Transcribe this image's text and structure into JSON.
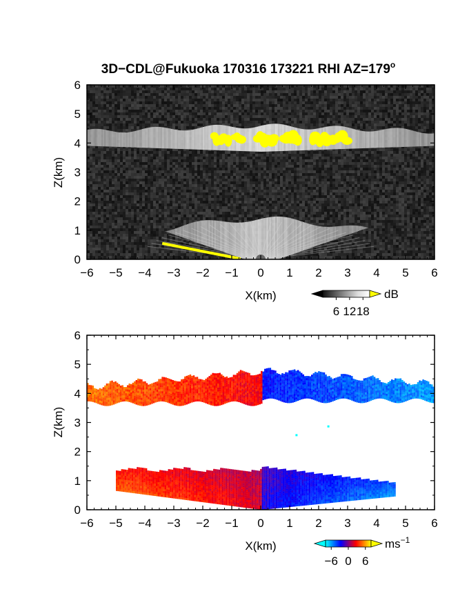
{
  "chart_data": [
    {
      "type": "heatmap",
      "title": "3D−CDL@Fukuoka 170316 173221 RHI AZ=179",
      "title_superscript": "o",
      "xlabel": "X(km)",
      "ylabel": "Z(km)",
      "xlim": [
        -6,
        6
      ],
      "ylim": [
        0,
        6
      ],
      "xticks": [
        -6,
        -5,
        -4,
        -3,
        -2,
        -1,
        0,
        1,
        2,
        3,
        4,
        5,
        6
      ],
      "yticks": [
        0,
        1,
        2,
        3,
        4,
        5,
        6
      ],
      "xtick_labels": [
        "−6",
        "−5",
        "−4",
        "−3",
        "−2",
        "−1",
        "0",
        "1",
        "2",
        "3",
        "4",
        "5",
        "6"
      ],
      "ytick_labels": [
        "0",
        "1",
        "2",
        "3",
        "4",
        "5",
        "6"
      ],
      "quantity": "SNR",
      "colorbar": {
        "unit": "dB",
        "ticks": [
          6,
          12,
          18
        ],
        "tick_labels": [
          "6",
          "12",
          "18"
        ],
        "colormap": "grayscale",
        "overflow_color": "#ffff00",
        "range": [
          0,
          21
        ]
      },
      "features": [
        {
          "name": "upper layer",
          "x_range": [
            -6,
            6
          ],
          "z_range": [
            3.7,
            4.6
          ],
          "highlight_segments_x": [
            [
              -1.6,
              -1.1
            ],
            [
              -0.9,
              -0.6
            ],
            [
              -0.1,
              0.5
            ],
            [
              0.8,
              1.3
            ],
            [
              1.8,
              2.3
            ],
            [
              2.5,
              3.0
            ]
          ],
          "highlight_z": [
            3.9,
            4.4
          ]
        },
        {
          "name": "lower layer",
          "x_range": [
            -4.8,
            4.8
          ],
          "z_range": [
            0,
            1.4
          ]
        },
        {
          "name": "ground return",
          "x_range": [
            -3.4,
            -0.6
          ],
          "z_range": [
            0,
            0.55
          ]
        }
      ]
    },
    {
      "type": "heatmap",
      "xlabel": "X(km)",
      "ylabel": "Z(km)",
      "xlim": [
        -6,
        6
      ],
      "ylim": [
        0,
        6
      ],
      "xticks": [
        -6,
        -5,
        -4,
        -3,
        -2,
        -1,
        0,
        1,
        2,
        3,
        4,
        5,
        6
      ],
      "yticks": [
        0,
        1,
        2,
        3,
        4,
        5,
        6
      ],
      "xtick_labels": [
        "−6",
        "−5",
        "−4",
        "−3",
        "−2",
        "−1",
        "0",
        "1",
        "2",
        "3",
        "4",
        "5",
        "6"
      ],
      "ytick_labels": [
        "0",
        "1",
        "2",
        "3",
        "4",
        "5",
        "6"
      ],
      "quantity": "Doppler velocity",
      "colorbar": {
        "unit": "ms",
        "unit_exponent": "−1",
        "ticks": [
          -6,
          0,
          6
        ],
        "tick_labels": [
          "−6",
          "0",
          "6"
        ],
        "colormap": [
          "#00ffff",
          "#0000ff",
          "#ff0000",
          "#ffff00"
        ],
        "range": [
          -8,
          8
        ]
      },
      "features": [
        {
          "name": "upper layer",
          "x_range": [
            -6,
            6
          ],
          "z_range": [
            3.6,
            4.9
          ],
          "velocity_left": 5,
          "velocity_right": -6
        },
        {
          "name": "lower layer",
          "x_range": [
            -5,
            4.6
          ],
          "z_range": [
            0,
            1.6
          ],
          "velocity_left": 6,
          "velocity_right": -7
        },
        {
          "name": "scattered points",
          "points": [
            [
              1.2,
              2.6
            ],
            [
              2.3,
              2.9
            ]
          ]
        }
      ]
    }
  ]
}
